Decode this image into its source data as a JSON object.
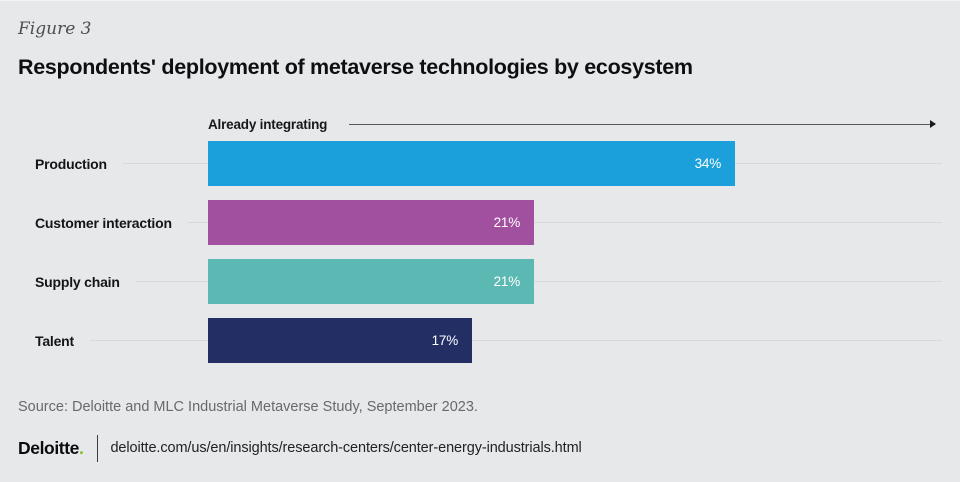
{
  "figure_label": "Figure 3",
  "title": "Respondents' deployment of metaverse technologies by ecosystem",
  "chart_data": {
    "type": "bar",
    "orientation": "horizontal",
    "title": "Respondents' deployment of metaverse technologies by ecosystem",
    "annotation": "Already integrating",
    "categories": [
      "Production",
      "Customer interaction",
      "Supply chain",
      "Talent"
    ],
    "values": [
      34,
      21,
      21,
      17
    ],
    "value_labels": [
      "34%",
      "21%",
      "21%",
      "17%"
    ],
    "bar_colors": [
      "#1ba0db",
      "#a0509f",
      "#5cb8b2",
      "#232e64"
    ],
    "xlim": [
      0,
      47
    ],
    "grid": "off",
    "legend": "none"
  },
  "source": "Source: Deloitte and MLC Industrial Metaverse Study, September 2023.",
  "footer": {
    "logo_text": "Deloitte",
    "logo_dot": ".",
    "url": "deloitte.com/us/en/insights/research-centers/center-energy-industrials.html"
  },
  "colors": {
    "background": "#e7e8ea",
    "accent_green": "#86bc25",
    "bar_blue": "#1ba0db",
    "bar_purple": "#a0509f",
    "bar_teal": "#5cb8b2",
    "bar_navy": "#232e64"
  }
}
